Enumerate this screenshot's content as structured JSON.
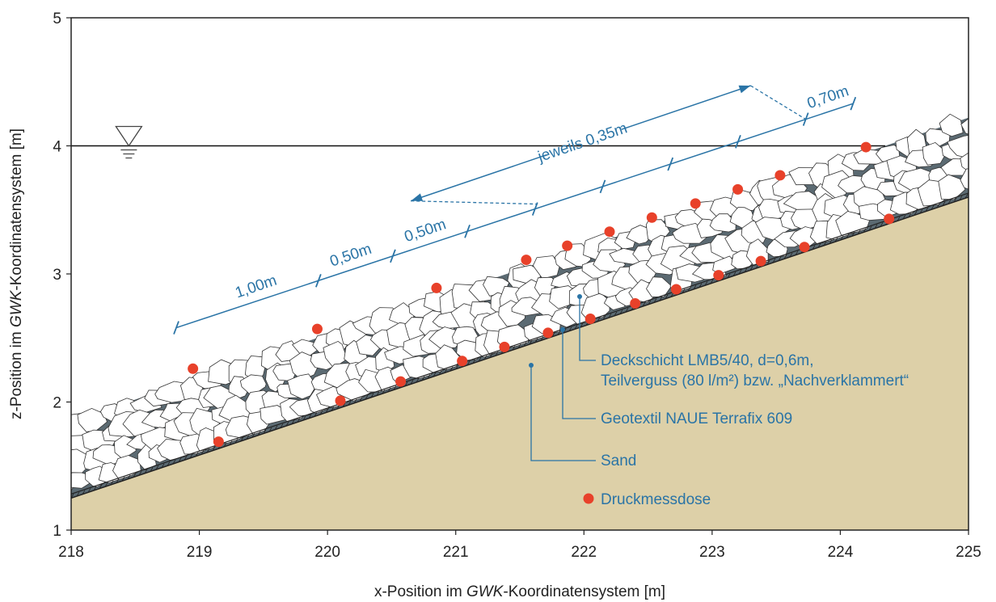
{
  "chart_data": {
    "type": "diagram",
    "xlabel_parts": [
      "x-Position im ",
      "GWK",
      "-Koordinatensystem [m]"
    ],
    "ylabel_parts": [
      "z-Position im ",
      "GWK",
      "-Koordinatensystem [m]"
    ],
    "xlim": [
      218,
      225
    ],
    "ylim": [
      1,
      5
    ],
    "x_ticks": [
      "218",
      "219",
      "220",
      "221",
      "222",
      "223",
      "224",
      "225"
    ],
    "y_ticks": [
      "1",
      "2",
      "3",
      "4",
      "5"
    ],
    "water_level_z": 4.0,
    "slope": {
      "sand_top": [
        [
          218,
          1.25
        ],
        [
          225,
          3.6
        ]
      ],
      "layer_top": [
        [
          218,
          1.85
        ],
        [
          225,
          4.22
        ]
      ]
    },
    "pressure_sensors": [
      [
        219.15,
        1.69
      ],
      [
        220.1,
        2.01
      ],
      [
        220.57,
        2.16
      ],
      [
        221.05,
        2.32
      ],
      [
        221.38,
        2.43
      ],
      [
        221.72,
        2.54
      ],
      [
        222.05,
        2.65
      ],
      [
        222.4,
        2.77
      ],
      [
        222.72,
        2.88
      ],
      [
        223.05,
        2.99
      ],
      [
        223.38,
        3.1
      ],
      [
        223.72,
        3.21
      ],
      [
        224.38,
        3.43
      ],
      [
        218.95,
        2.26
      ],
      [
        219.92,
        2.57
      ],
      [
        220.85,
        2.89
      ],
      [
        221.55,
        3.11
      ],
      [
        221.87,
        3.22
      ],
      [
        222.2,
        3.33
      ],
      [
        222.53,
        3.44
      ],
      [
        222.87,
        3.55
      ],
      [
        223.2,
        3.66
      ],
      [
        223.53,
        3.77
      ],
      [
        224.2,
        3.99
      ]
    ],
    "dimensions": {
      "labels": [
        "1,00m",
        "0,50m",
        "0,50m",
        "jeweils 0,35m",
        "0,70m"
      ]
    },
    "legend": {
      "deckschicht_line1": "Deckschicht LMB5/40, d=0,6m,",
      "deckschicht_line2": "Teilverguss (80 l/m²) bzw. „Nachverklammert“",
      "geotextil": "Geotextil NAUE Terrafix 609",
      "sand": "Sand",
      "sensor": "Druckmessdose"
    },
    "colors": {
      "sand": "#ddd0a8",
      "grout": "#5b6a72",
      "stone": "#ffffff",
      "sensor": "#e8412a",
      "annotation": "#2a74a6",
      "axis": "#222222"
    }
  }
}
